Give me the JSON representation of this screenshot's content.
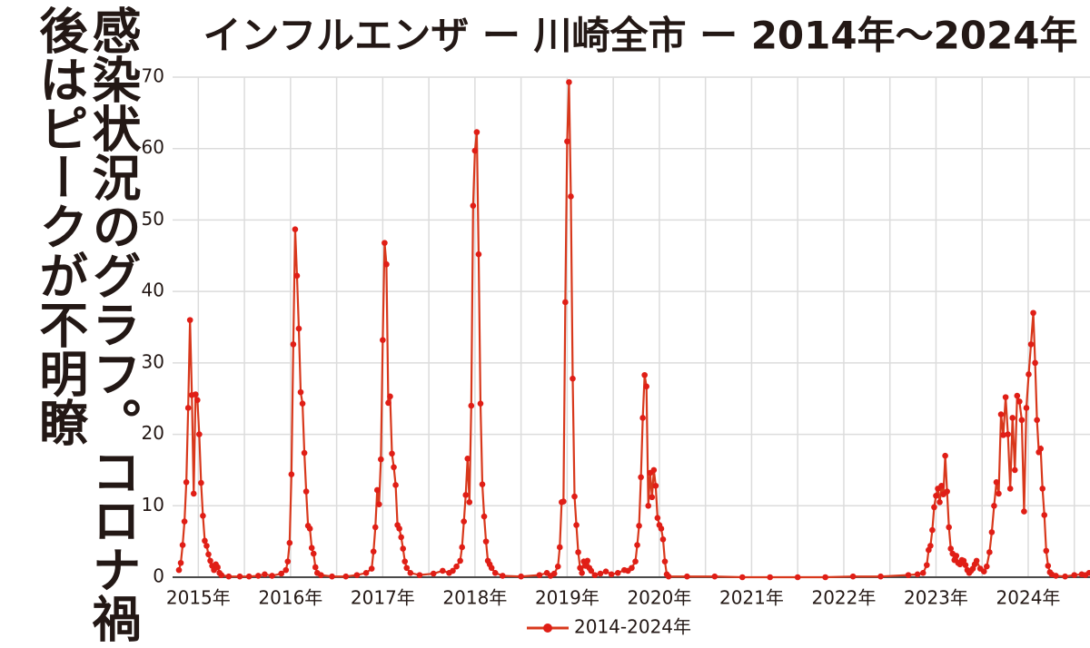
{
  "caption": "感染状況のグラフ。コロナ禍後はピークが不明瞭",
  "chart_data": {
    "type": "line",
    "title": "インフルエンザ ー 川崎全市 ー 2014年〜2024年",
    "x": [
      2014.79,
      2014.81,
      2014.83,
      2014.85,
      2014.87,
      2014.89,
      2014.91,
      2014.93,
      2014.95,
      2014.97,
      2014.99,
      2015.01,
      2015.03,
      2015.05,
      2015.07,
      2015.09,
      2015.11,
      2015.13,
      2015.15,
      2015.17,
      2015.19,
      2015.21,
      2015.23,
      2015.25,
      2015.33,
      2015.45,
      2015.55,
      2015.65,
      2015.72,
      2015.8,
      2015.9,
      2015.95,
      2015.97,
      2015.99,
      2016.01,
      2016.03,
      2016.05,
      2016.07,
      2016.09,
      2016.11,
      2016.13,
      2016.15,
      2016.17,
      2016.19,
      2016.21,
      2016.23,
      2016.25,
      2016.27,
      2016.29,
      2016.33,
      2016.45,
      2016.6,
      2016.72,
      2016.82,
      2016.88,
      2016.9,
      2016.92,
      2016.94,
      2016.96,
      2016.98,
      2017.0,
      2017.02,
      2017.04,
      2017.06,
      2017.08,
      2017.1,
      2017.12,
      2017.14,
      2017.16,
      2017.18,
      2017.2,
      2017.22,
      2017.24,
      2017.26,
      2017.3,
      2017.4,
      2017.55,
      2017.65,
      2017.72,
      2017.76,
      2017.8,
      2017.84,
      2017.86,
      2017.88,
      2017.9,
      2017.92,
      2017.94,
      2017.96,
      2017.98,
      2018.0,
      2018.02,
      2018.04,
      2018.06,
      2018.08,
      2018.1,
      2018.12,
      2018.14,
      2018.16,
      2018.18,
      2018.22,
      2018.3,
      2018.5,
      2018.7,
      2018.78,
      2018.82,
      2018.86,
      2018.9,
      2018.92,
      2018.94,
      2018.96,
      2018.98,
      2019.0,
      2019.02,
      2019.04,
      2019.06,
      2019.08,
      2019.1,
      2019.12,
      2019.14,
      2019.16,
      2019.18,
      2019.2,
      2019.22,
      2019.24,
      2019.26,
      2019.3,
      2019.36,
      2019.42,
      2019.48,
      2019.55,
      2019.62,
      2019.66,
      2019.7,
      2019.74,
      2019.76,
      2019.78,
      2019.8,
      2019.82,
      2019.84,
      2019.86,
      2019.88,
      2019.9,
      2019.92,
      2019.94,
      2019.96,
      2019.98,
      2020.0,
      2020.02,
      2020.04,
      2020.06,
      2020.08,
      2020.1,
      2020.3,
      2020.6,
      2020.9,
      2021.2,
      2021.5,
      2021.8,
      2022.1,
      2022.4,
      2022.7,
      2022.8,
      2022.86,
      2022.9,
      2022.92,
      2022.94,
      2022.96,
      2022.98,
      2023.0,
      2023.02,
      2023.04,
      2023.06,
      2023.08,
      2023.1,
      2023.12,
      2023.14,
      2023.16,
      2023.18,
      2023.2,
      2023.22,
      2023.24,
      2023.26,
      2023.28,
      2023.3,
      2023.32,
      2023.34,
      2023.36,
      2023.38,
      2023.4,
      2023.42,
      2023.44,
      2023.48,
      2023.52,
      2023.55,
      2023.58,
      2023.605,
      2023.63,
      2023.655,
      2023.68,
      2023.705,
      2023.73,
      2023.755,
      2023.78,
      2023.805,
      2023.83,
      2023.855,
      2023.88,
      2023.905,
      2023.93,
      2023.955,
      2023.98,
      2024.005,
      2024.03,
      2024.055,
      2024.075,
      2024.095,
      2024.115,
      2024.135,
      2024.155,
      2024.175,
      2024.195,
      2024.215,
      2024.235,
      2024.255,
      2024.3,
      2024.4,
      2024.5,
      2024.58,
      2024.62,
      2024.66
    ],
    "series": [
      {
        "name": "2014-2024年",
        "color": "#d8381c",
        "values": [
          1.0,
          2.0,
          4.5,
          7.8,
          13.3,
          23.7,
          36.0,
          25.5,
          11.7,
          25.6,
          24.8,
          20.0,
          13.2,
          8.6,
          5.1,
          4.4,
          3.2,
          2.3,
          1.6,
          1.0,
          1.8,
          1.4,
          0.6,
          0.3,
          0.1,
          0.1,
          0.1,
          0.2,
          0.4,
          0.2,
          0.5,
          1.0,
          2.2,
          4.8,
          14.4,
          32.6,
          48.7,
          42.2,
          34.8,
          25.9,
          24.3,
          17.4,
          12.0,
          7.2,
          6.8,
          4.1,
          3.3,
          1.4,
          0.6,
          0.3,
          0.1,
          0.1,
          0.3,
          0.6,
          1.2,
          3.6,
          7.0,
          12.2,
          10.2,
          16.5,
          33.2,
          46.8,
          43.8,
          24.4,
          25.3,
          17.3,
          15.4,
          12.9,
          7.3,
          6.8,
          5.6,
          4.0,
          2.2,
          1.3,
          0.6,
          0.3,
          0.5,
          0.9,
          0.6,
          0.9,
          1.5,
          2.3,
          4.2,
          7.8,
          11.5,
          16.6,
          10.5,
          24.0,
          52.0,
          59.7,
          62.3,
          45.2,
          24.3,
          13.0,
          8.5,
          5.0,
          2.3,
          1.8,
          1.3,
          0.6,
          0.2,
          0.1,
          0.3,
          0.6,
          0.2,
          0.5,
          1.5,
          4.2,
          10.5,
          10.6,
          38.5,
          61.0,
          69.3,
          53.3,
          27.8,
          11.3,
          7.3,
          3.5,
          1.3,
          0.6,
          2.2,
          1.6,
          2.3,
          1.3,
          0.9,
          0.3,
          0.5,
          0.8,
          0.4,
          0.6,
          1.0,
          0.9,
          1.3,
          2.2,
          4.5,
          7.2,
          14.0,
          22.3,
          28.3,
          26.7,
          10.0,
          14.6,
          11.2,
          15.0,
          12.8,
          8.3,
          7.3,
          6.8,
          5.3,
          2.2,
          0.4,
          0.1,
          0.1,
          0.1,
          0,
          0,
          0,
          0,
          0.1,
          0.1,
          0.3,
          0.4,
          0.6,
          1.7,
          3.8,
          4.4,
          6.6,
          9.8,
          11.4,
          12.4,
          10.5,
          12.8,
          11.6,
          17.0,
          12.0,
          7.0,
          4.0,
          3.3,
          2.4,
          3.0,
          2.0,
          1.8,
          2.4,
          2.3,
          1.7,
          1.0,
          0.6,
          0.9,
          1.2,
          1.8,
          2.3,
          1.2,
          0.8,
          1.5,
          3.5,
          6.3,
          10.0,
          13.3,
          11.7,
          22.8,
          19.9,
          25.2,
          20.0,
          12.4,
          22.3,
          15.0,
          25.4,
          24.6,
          22.0,
          9.2,
          23.7,
          28.4,
          32.6,
          37.0,
          30.0,
          22.0,
          17.5,
          18.0,
          12.4,
          8.7,
          3.7,
          1.6,
          0.7,
          0.4,
          0.2,
          0.1,
          0.3,
          0.4,
          0.3,
          0.6
        ]
      }
    ],
    "xlim": [
      2014.78,
      2024.67
    ],
    "xticks": [
      {
        "value": 2015,
        "label": "2015年"
      },
      {
        "value": 2016,
        "label": "2016年"
      },
      {
        "value": 2017,
        "label": "2017年"
      },
      {
        "value": 2018,
        "label": "2018年"
      },
      {
        "value": 2019,
        "label": "2019年"
      },
      {
        "value": 2020,
        "label": "2020年"
      },
      {
        "value": 2021,
        "label": "2021年"
      },
      {
        "value": 2022,
        "label": "2022年"
      },
      {
        "value": 2023,
        "label": "2023年"
      },
      {
        "value": 2024,
        "label": "2024年"
      }
    ],
    "xminorticks": [
      2015.5,
      2016.5,
      2017.5,
      2018.5,
      2019.5,
      2020.5,
      2021.5,
      2022.5,
      2023.5,
      2024.5
    ],
    "ylim": [
      0,
      70
    ],
    "yticks": [
      0,
      10,
      20,
      30,
      40,
      50,
      60,
      70
    ],
    "grid": true,
    "legend": "bottom"
  }
}
